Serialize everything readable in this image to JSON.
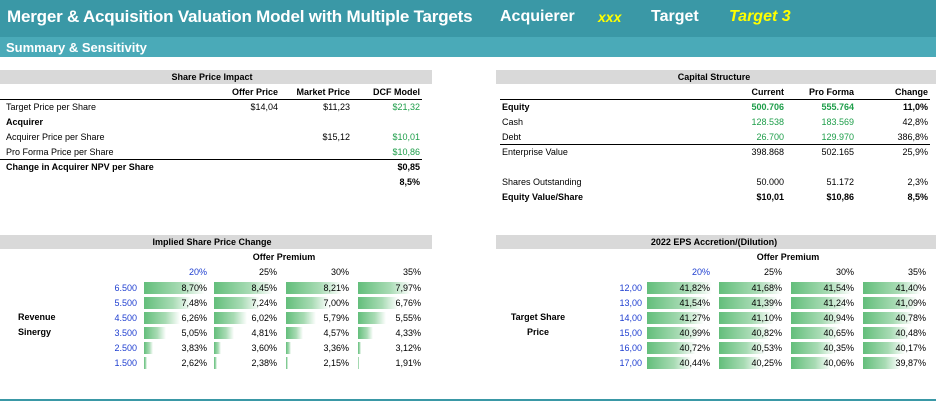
{
  "header": {
    "title": "Merger & Acquisition Valuation Model with Multiple Targets",
    "acquirer_label": "Acquierer",
    "acquirer_value": "xxx",
    "target_label": "Target",
    "target_value": "Target 3"
  },
  "subheader": {
    "title": "Summary & Sensitivity"
  },
  "share_price": {
    "title": "Share Price Impact",
    "columns": [
      "Offer Price",
      "Market Price",
      "DCF Model"
    ],
    "rows": [
      {
        "label": "Target Price per Share",
        "offer": "$14,04",
        "market": "$11,23",
        "dcf": "$21,32"
      },
      {
        "label": "Acquirer",
        "offer": "",
        "market": "",
        "dcf": ""
      },
      {
        "label": "Acquirer Price per Share",
        "offer": "",
        "market": "$15,12",
        "dcf": "$10,01"
      },
      {
        "label": "Pro Forma Price per Share",
        "offer": "",
        "market": "",
        "dcf": "$10,86"
      },
      {
        "label": "Change in Acquirer NPV per Share",
        "offer": "",
        "market": "",
        "dcf": "$0,85"
      },
      {
        "label": "",
        "offer": "",
        "market": "",
        "dcf": "8,5%"
      }
    ]
  },
  "capital": {
    "title": "Capital Structure",
    "columns": [
      "Current",
      "Pro Forma",
      "Change"
    ],
    "rows": [
      {
        "label": "Equity",
        "current": "500.706",
        "pro_forma": "555.764",
        "change": "11,0%"
      },
      {
        "label": "Cash",
        "current": "128.538",
        "pro_forma": "183.569",
        "change": "42,8%"
      },
      {
        "label": "Debt",
        "current": "26.700",
        "pro_forma": "129.970",
        "change": "386,8%"
      },
      {
        "label": "Enterprise Value",
        "current": "398.868",
        "pro_forma": "502.165",
        "change": "25,9%"
      },
      {
        "label": "Shares Outstanding",
        "current": "50.000",
        "pro_forma": "51.172",
        "change": "2,3%"
      },
      {
        "label": "Equity Value/Share",
        "current": "$10,01",
        "pro_forma": "$10,86",
        "change": "8,5%"
      }
    ]
  },
  "implied": {
    "title": "Implied Share Price Change",
    "subtitle": "Offer Premium",
    "row_label_1": "Revenue",
    "row_label_2": "Sinergy",
    "col_headers": [
      "20%",
      "25%",
      "30%",
      "35%"
    ],
    "row_headers": [
      "6.500",
      "5.500",
      "4.500",
      "3.500",
      "2.500",
      "1.500"
    ],
    "cells": [
      [
        "8,70%",
        "8,45%",
        "8,21%",
        "7,97%"
      ],
      [
        "7,48%",
        "7,24%",
        "7,00%",
        "6,76%"
      ],
      [
        "6,26%",
        "6,02%",
        "5,79%",
        "5,55%"
      ],
      [
        "5,05%",
        "4,81%",
        "4,57%",
        "4,33%"
      ],
      [
        "3,83%",
        "3,60%",
        "3,36%",
        "3,12%"
      ],
      [
        "2,62%",
        "2,38%",
        "2,15%",
        "1,91%"
      ]
    ],
    "fills": [
      [
        0.93,
        0.89,
        0.85,
        0.81
      ],
      [
        0.73,
        0.69,
        0.65,
        0.61
      ],
      [
        0.54,
        0.5,
        0.46,
        0.42
      ],
      [
        0.34,
        0.3,
        0.26,
        0.22
      ],
      [
        0.14,
        0.1,
        0.07,
        0.05
      ],
      [
        0.04,
        0.04,
        0.03,
        0.02
      ]
    ]
  },
  "eps": {
    "title": "2022 EPS Accretion/(Dilution)",
    "subtitle": "Offer Premium",
    "row_label_1": "Target Share",
    "row_label_2": "Price",
    "col_headers": [
      "20%",
      "25%",
      "30%",
      "35%"
    ],
    "row_headers": [
      "12,00",
      "13,00",
      "14,00",
      "15,00",
      "16,00",
      "17,00"
    ],
    "cells": [
      [
        "41,82%",
        "41,68%",
        "41,54%",
        "41,40%"
      ],
      [
        "41,54%",
        "41,39%",
        "41,24%",
        "41,09%"
      ],
      [
        "41,27%",
        "41,10%",
        "40,94%",
        "40,78%"
      ],
      [
        "40,99%",
        "40,82%",
        "40,65%",
        "40,48%"
      ],
      [
        "40,72%",
        "40,53%",
        "40,35%",
        "40,17%"
      ],
      [
        "40,44%",
        "40,25%",
        "40,06%",
        "39,87%"
      ]
    ],
    "fills": [
      [
        0.98,
        0.95,
        0.92,
        0.88
      ],
      [
        0.92,
        0.89,
        0.86,
        0.82
      ],
      [
        0.86,
        0.83,
        0.79,
        0.76
      ],
      [
        0.8,
        0.77,
        0.73,
        0.7
      ],
      [
        0.74,
        0.7,
        0.67,
        0.63
      ],
      [
        0.68,
        0.64,
        0.6,
        0.56
      ]
    ]
  },
  "colors": {
    "header": "#3a98a6",
    "subheader": "#4aaab8",
    "accent_yellow": "#ffff00",
    "green_value": "#1e9e4a",
    "blue_value": "#1f3fd0",
    "bar_green": "#63be7b"
  }
}
